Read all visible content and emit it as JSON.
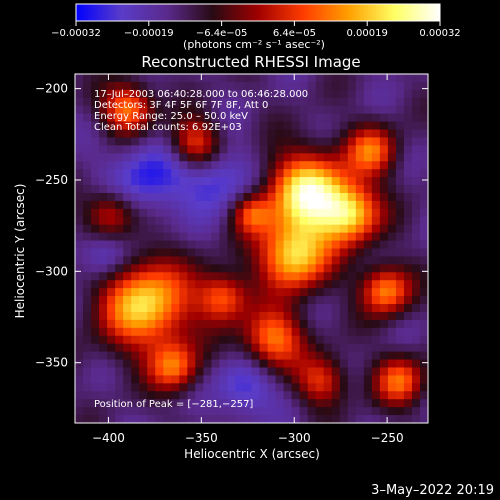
{
  "chart_data": {
    "type": "heatmap",
    "title": "Reconstructed RHESSI Image",
    "xlabel": "Heliocentric X (arcsec)",
    "ylabel": "Heliocentric Y (arcsec)",
    "xlim": [
      -418,
      -228
    ],
    "ylim": [
      -383,
      -192
    ],
    "x_ticks": [
      -400,
      -350,
      -300,
      -250
    ],
    "x_tick_labels": [
      "−400",
      "−350",
      "−300",
      "−250"
    ],
    "y_ticks": [
      -200,
      -250,
      -300,
      -350
    ],
    "y_tick_labels": [
      "−200",
      "−250",
      "−300",
      "−350"
    ],
    "colorbar": {
      "range": [
        -0.00032,
        0.00032
      ],
      "tick_labels": [
        "−0.00032",
        "−0.00019",
        "−6.4e−05",
        "6.4e−05",
        "0.00019",
        "0.00032"
      ],
      "unit_label": "(photons cm⁻² s⁻¹ asec⁻²)",
      "stops": [
        "#0000ff",
        "#5a3cc8",
        "#5a2a8c",
        "#280a14",
        "#a00000",
        "#ff3c00",
        "#ffa000",
        "#ffff64",
        "#ffffff"
      ]
    },
    "annotations": [
      "17–Jul–2003 06:40:28.000 to 06:46:28.000",
      "Detectors: 3F 4F 5F 6F 7F 8F, Att 0",
      "Energy Range: 25.0 – 50.0 keV",
      "Clean     Total counts: 6.92E+03"
    ],
    "peak_label": "Position of Peak = [−281,−257]",
    "grid": false
  },
  "footer": {
    "timestamp": "3–May–2022 20:19"
  }
}
